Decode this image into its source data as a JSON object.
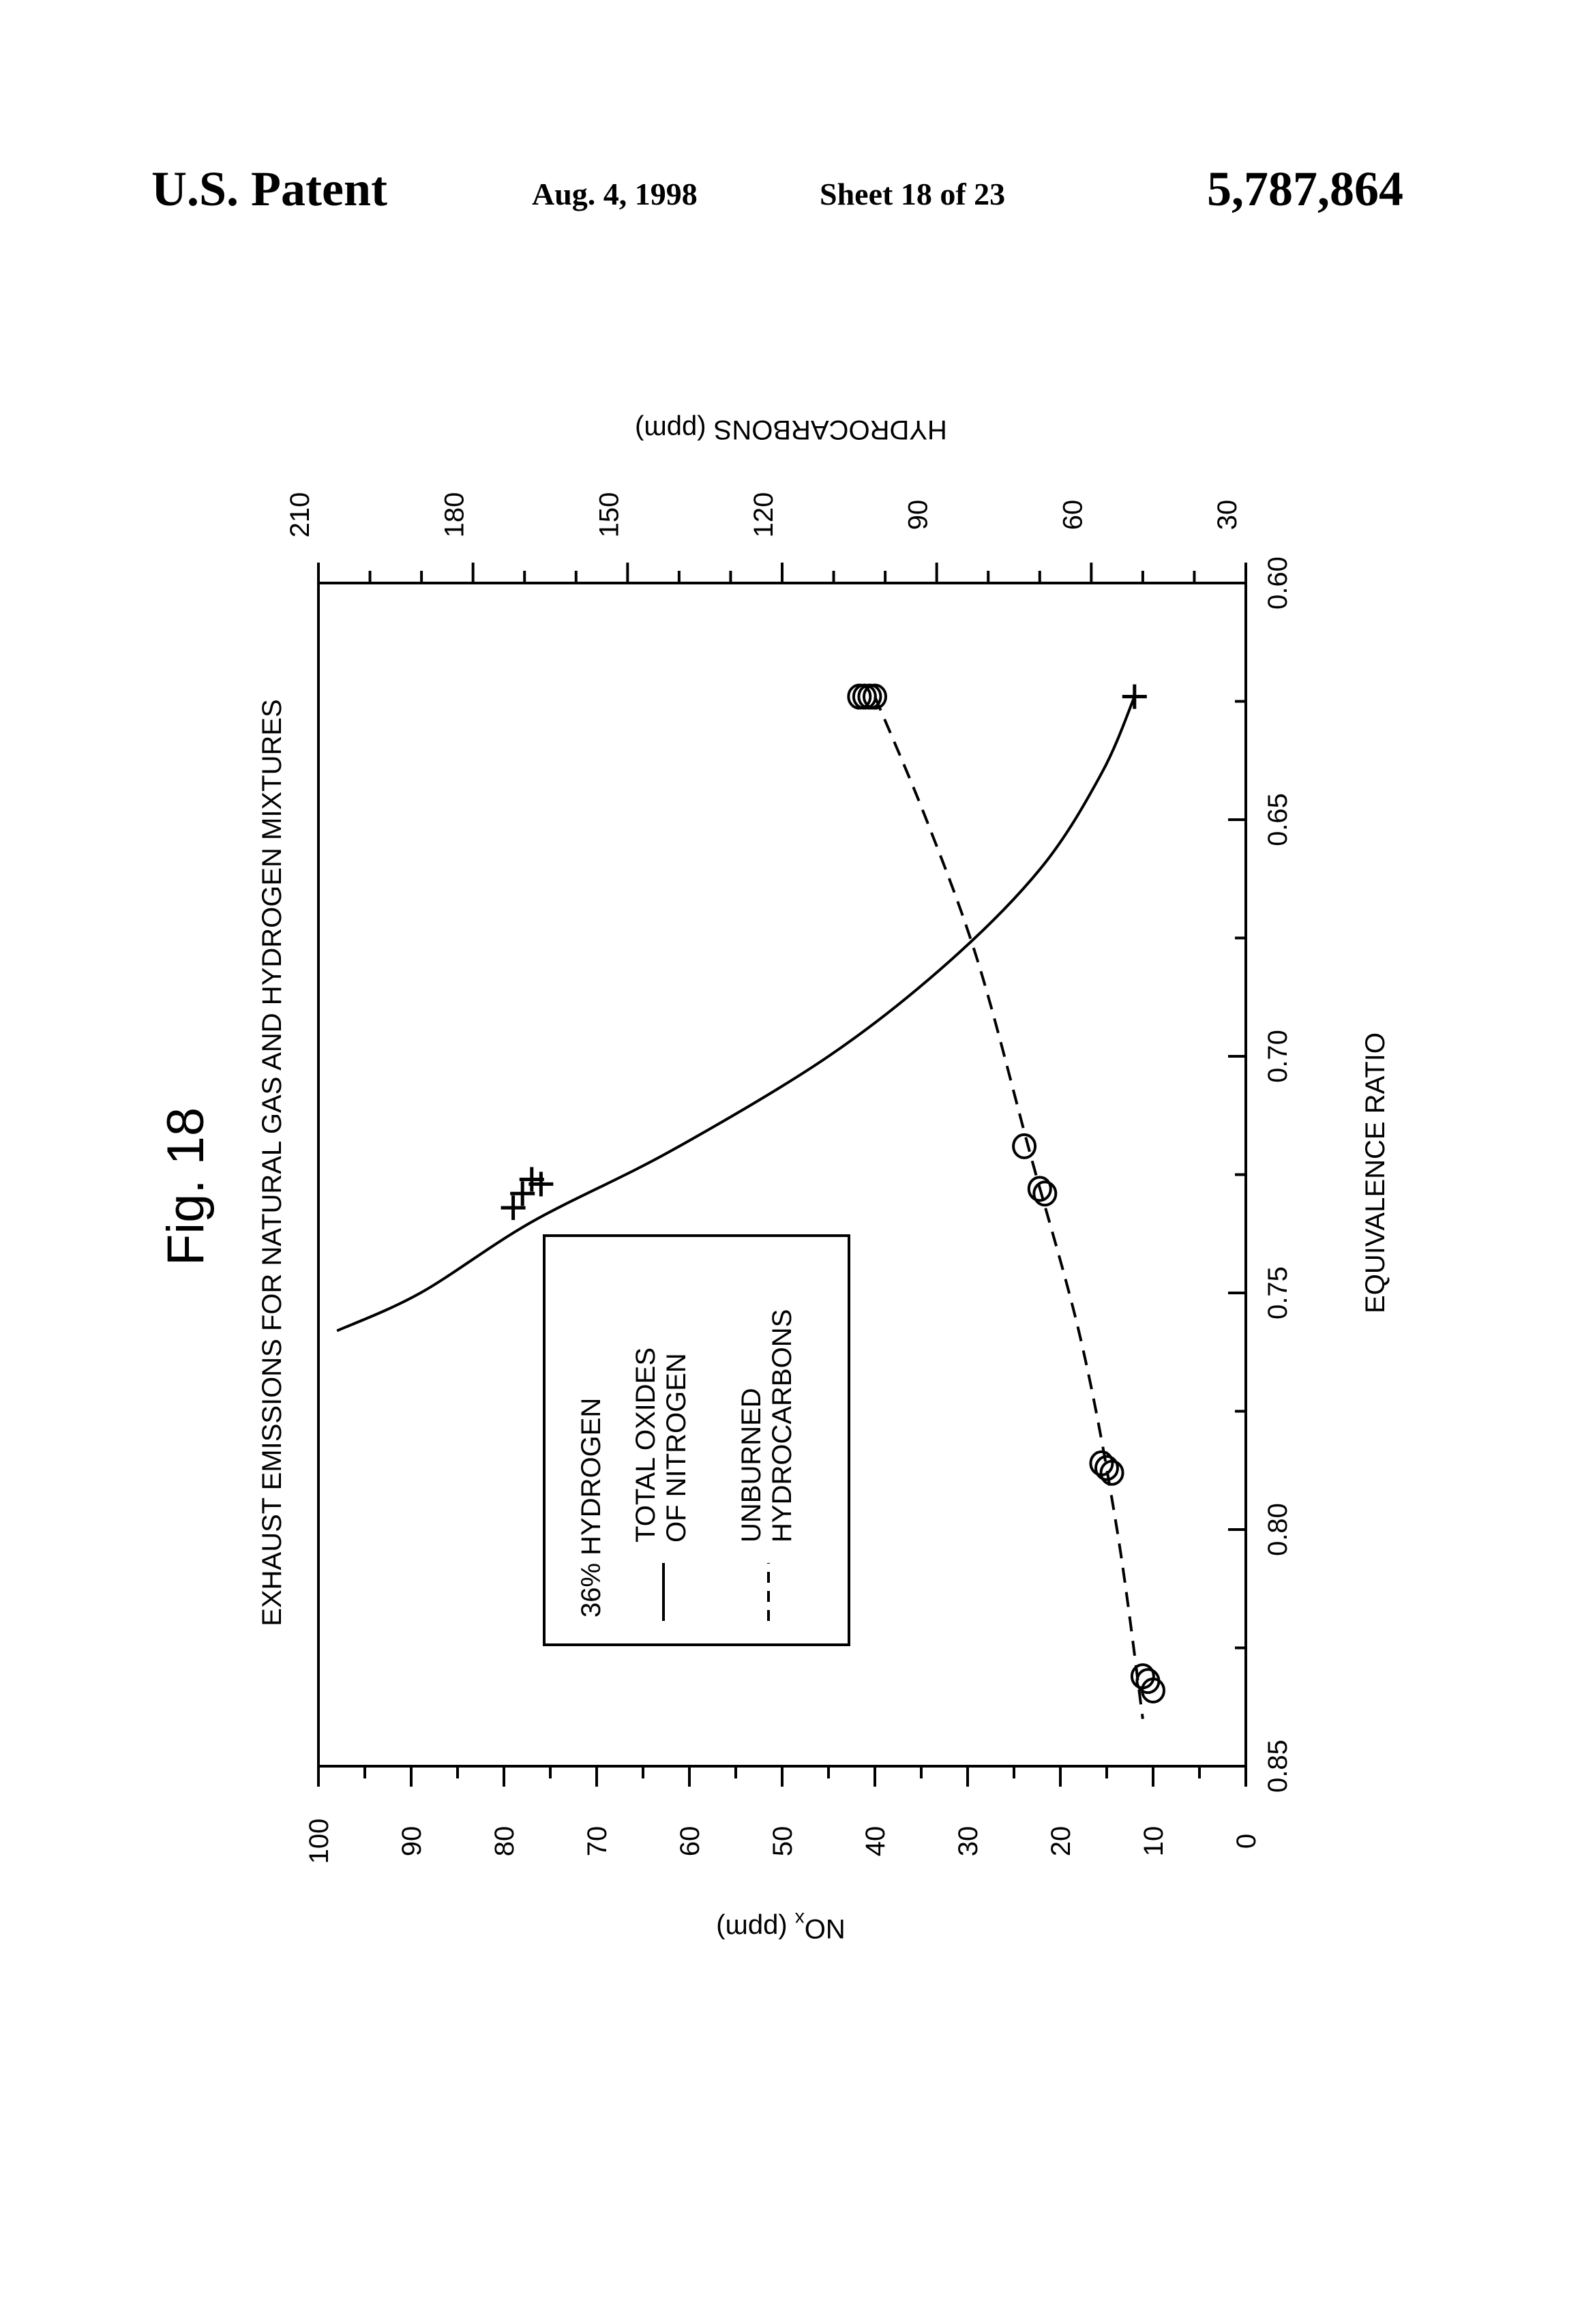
{
  "header": {
    "patent": "U.S. Patent",
    "date": "Aug. 4, 1998",
    "sheet": "Sheet 18 of 23",
    "number": "5,787,864"
  },
  "figure": {
    "label": "Fig. 18",
    "title": "EXHAUST EMISSIONS FOR NATURAL GAS AND HYDROGEN MIXTURES"
  },
  "legend": {
    "heading": "36% HYDROGEN",
    "entries": [
      {
        "line1": "TOTAL OXIDES",
        "line2": "OF NITROGEN",
        "style": "solid"
      },
      {
        "line1": "UNBURNED",
        "line2": "HYDROCARBONS",
        "style": "dashed"
      }
    ]
  },
  "chart_data": {
    "type": "scatter",
    "orientation": "rotated 90 degrees counter-clockwise on the page",
    "title": "EXHAUST EMISSIONS FOR NATURAL GAS AND HYDROGEN MIXTURES",
    "x_axis": {
      "label": "EQUIVALENCE RATIO",
      "range": [
        0.6,
        0.85
      ],
      "ticks": [
        0.6,
        0.65,
        0.7,
        0.75,
        0.8,
        0.85
      ],
      "tick_labels": [
        "0.60",
        "0.65",
        "0.70",
        "0.75",
        "0.80",
        "0.85"
      ]
    },
    "y_axis_left": {
      "label": "NOx (ppm)",
      "range": [
        0,
        100
      ],
      "ticks": [
        0,
        10,
        20,
        30,
        40,
        50,
        60,
        70,
        80,
        90,
        100
      ],
      "tick_labels": [
        "0",
        "10",
        "20",
        "30",
        "40",
        "50",
        "60",
        "70",
        "80",
        "90",
        "100"
      ]
    },
    "y_axis_right": {
      "label": "HYDROCARBONS (ppm)",
      "range": [
        30,
        210
      ],
      "ticks": [
        30,
        60,
        90,
        120,
        150,
        180,
        210
      ],
      "tick_labels": [
        "30",
        "60",
        "90",
        "120",
        "150",
        "180",
        "210"
      ]
    },
    "series": [
      {
        "name": "TOTAL OXIDES OF NITROGEN",
        "axis": "left",
        "marker": "plus",
        "line": "solid",
        "points": [
          [
            0.624,
            12
          ],
          [
            0.726,
            77
          ],
          [
            0.727,
            76
          ],
          [
            0.729,
            78
          ],
          [
            0.732,
            79
          ]
        ],
        "fit_curve": [
          [
            0.624,
            12
          ],
          [
            0.64,
            15.5
          ],
          [
            0.66,
            22
          ],
          [
            0.68,
            32
          ],
          [
            0.7,
            45
          ],
          [
            0.72,
            62
          ],
          [
            0.735,
            77
          ],
          [
            0.75,
            89
          ],
          [
            0.758,
            98
          ]
        ]
      },
      {
        "name": "UNBURNED HYDROCARBONS",
        "axis": "right",
        "marker": "circle",
        "line": "dashed",
        "points": [
          [
            0.624,
            102
          ],
          [
            0.624,
            103
          ],
          [
            0.624,
            104
          ],
          [
            0.624,
            105
          ],
          [
            0.719,
            73
          ],
          [
            0.728,
            70
          ],
          [
            0.729,
            69
          ],
          [
            0.786,
            58
          ],
          [
            0.787,
            57
          ],
          [
            0.788,
            56
          ],
          [
            0.831,
            50
          ],
          [
            0.832,
            49
          ],
          [
            0.834,
            48
          ]
        ],
        "fit_curve": [
          [
            0.624,
            102
          ],
          [
            0.65,
            92
          ],
          [
            0.68,
            82
          ],
          [
            0.72,
            72
          ],
          [
            0.76,
            62
          ],
          [
            0.8,
            55
          ],
          [
            0.84,
            50
          ]
        ]
      }
    ],
    "grid": false,
    "legend_position": "lower-left of rotated plot"
  }
}
